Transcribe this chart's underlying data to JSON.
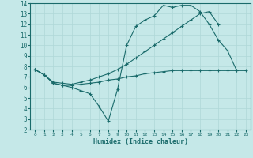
{
  "xlabel": "Humidex (Indice chaleur)",
  "bg_color": "#c5e8e8",
  "grid_color": "#afd8d8",
  "line_color": "#1a6b6b",
  "xlim": [
    -0.5,
    23.5
  ],
  "ylim": [
    2,
    14
  ],
  "xticks": [
    0,
    1,
    2,
    3,
    4,
    5,
    6,
    7,
    8,
    9,
    10,
    11,
    12,
    13,
    14,
    15,
    16,
    17,
    18,
    19,
    20,
    21,
    22,
    23
  ],
  "yticks": [
    2,
    3,
    4,
    5,
    6,
    7,
    8,
    9,
    10,
    11,
    12,
    13,
    14
  ],
  "line1_x": [
    0,
    1,
    2,
    3,
    4,
    5,
    6,
    7,
    8,
    9,
    10,
    11,
    12,
    13,
    14,
    15,
    16,
    17,
    18,
    19,
    20,
    21,
    22
  ],
  "line1_y": [
    7.7,
    7.2,
    6.4,
    6.2,
    6.0,
    5.7,
    5.4,
    4.2,
    2.8,
    5.8,
    10.0,
    11.8,
    12.4,
    12.8,
    13.8,
    13.6,
    13.8,
    13.8,
    13.2,
    12.0,
    10.5,
    9.5,
    7.6
  ],
  "line2_x": [
    0,
    1,
    2,
    3,
    4,
    5,
    6,
    7,
    8,
    9,
    10,
    11,
    12,
    13,
    14,
    15,
    16,
    17,
    18,
    19,
    20,
    21,
    22,
    23
  ],
  "line2_y": [
    7.7,
    7.2,
    6.4,
    6.2,
    6.2,
    6.3,
    6.4,
    6.5,
    6.7,
    6.8,
    7.0,
    7.1,
    7.3,
    7.4,
    7.5,
    7.6,
    7.6,
    7.6,
    7.6,
    7.6,
    7.6,
    7.6,
    7.6,
    7.6
  ],
  "line3_x": [
    0,
    1,
    2,
    3,
    4,
    5,
    6,
    7,
    8,
    9,
    10,
    11,
    12,
    13,
    14,
    15,
    16,
    17,
    18,
    19,
    20
  ],
  "line3_y": [
    7.7,
    7.2,
    6.5,
    6.4,
    6.3,
    6.5,
    6.7,
    7.0,
    7.3,
    7.7,
    8.2,
    8.8,
    9.4,
    10.0,
    10.6,
    11.2,
    11.8,
    12.4,
    13.0,
    13.2,
    12.0
  ]
}
